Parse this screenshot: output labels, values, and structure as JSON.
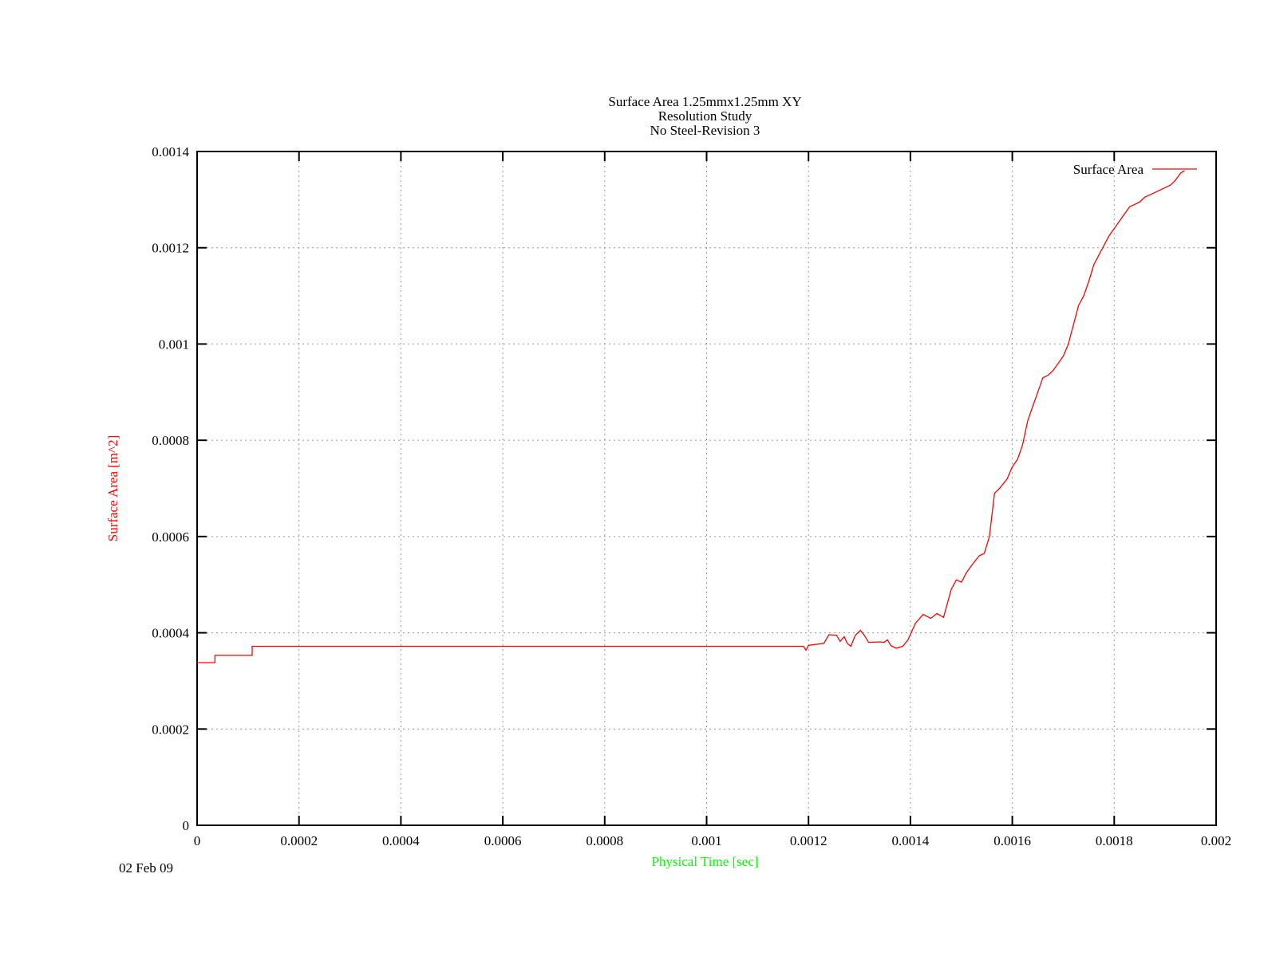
{
  "chart_data": {
    "type": "line",
    "title": [
      "Surface Area 1.25mmx1.25mm XY",
      "Resolution Study",
      "No Steel-Revision 3"
    ],
    "xlabel": "Physical Time [sec]",
    "ylabel": "Surface Area [m^2]",
    "xlim": [
      0,
      0.002
    ],
    "ylim": [
      0,
      0.0014
    ],
    "x_ticks": [
      "0",
      "0.0002",
      "0.0004",
      "0.0006",
      "0.0008",
      "0.001",
      "0.0012",
      "0.0014",
      "0.0016",
      "0.0018",
      "0.002"
    ],
    "y_ticks": [
      "0",
      "0.0002",
      "0.0004",
      "0.0006",
      "0.0008",
      "0.001",
      "0.0012",
      "0.0014"
    ],
    "grid": true,
    "legend_position": "top-right",
    "series": [
      {
        "name": "Surface Area",
        "color": "#ff0000",
        "step": true,
        "points": [
          [
            0,
            0.000338
          ],
          [
            3.5e-05,
            0.000338
          ],
          [
            3.5e-05,
            0.000353
          ],
          [
            0.000108,
            0.000353
          ],
          [
            0.000108,
            0.000372
          ],
          [
            0.00119,
            0.000372
          ],
          [
            0.001195,
            0.000364
          ],
          [
            0.0012,
            0.000374
          ],
          [
            0.00123,
            0.000378
          ],
          [
            0.00124,
            0.000396
          ],
          [
            0.001255,
            0.000395
          ],
          [
            0.001262,
            0.000382
          ],
          [
            0.00127,
            0.000392
          ],
          [
            0.001276,
            0.000378
          ],
          [
            0.001283,
            0.000372
          ],
          [
            0.001292,
            0.000395
          ],
          [
            0.001302,
            0.000405
          ],
          [
            0.00131,
            0.000394
          ],
          [
            0.001318,
            0.00038
          ],
          [
            0.00134,
            0.000381
          ],
          [
            0.001348,
            0.00038
          ],
          [
            0.001355,
            0.000385
          ],
          [
            0.001362,
            0.000373
          ],
          [
            0.001372,
            0.000368
          ],
          [
            0.001385,
            0.000372
          ],
          [
            0.001395,
            0.000385
          ],
          [
            0.00141,
            0.00042
          ],
          [
            0.001425,
            0.000438
          ],
          [
            0.00144,
            0.00043
          ],
          [
            0.001452,
            0.00044
          ],
          [
            0.001465,
            0.000432
          ],
          [
            0.00148,
            0.00049
          ],
          [
            0.00149,
            0.00051
          ],
          [
            0.0015,
            0.000505
          ],
          [
            0.00151,
            0.000525
          ],
          [
            0.00152,
            0.00054
          ],
          [
            0.001535,
            0.00056
          ],
          [
            0.001545,
            0.000565
          ],
          [
            0.001555,
            0.0006
          ],
          [
            0.001565,
            0.00069
          ],
          [
            0.001575,
            0.0007
          ],
          [
            0.00159,
            0.00072
          ],
          [
            0.0016,
            0.000745
          ],
          [
            0.00161,
            0.00076
          ],
          [
            0.00162,
            0.00079
          ],
          [
            0.00163,
            0.00084
          ],
          [
            0.00164,
            0.00087
          ],
          [
            0.00165,
            0.0009
          ],
          [
            0.00166,
            0.00093
          ],
          [
            0.00167,
            0.000935
          ],
          [
            0.00168,
            0.000945
          ],
          [
            0.00169,
            0.00096
          ],
          [
            0.0017,
            0.000975
          ],
          [
            0.00171,
            0.001
          ],
          [
            0.00172,
            0.00104
          ],
          [
            0.00173,
            0.00108
          ],
          [
            0.00174,
            0.0011
          ],
          [
            0.00175,
            0.00113
          ],
          [
            0.00176,
            0.001165
          ],
          [
            0.00177,
            0.001185
          ],
          [
            0.00178,
            0.001205
          ],
          [
            0.00179,
            0.001225
          ],
          [
            0.0018,
            0.00124
          ],
          [
            0.00181,
            0.001255
          ],
          [
            0.00182,
            0.00127
          ],
          [
            0.00183,
            0.001285
          ],
          [
            0.00184,
            0.00129
          ],
          [
            0.00185,
            0.001295
          ],
          [
            0.00186,
            0.001305
          ],
          [
            0.00187,
            0.00131
          ],
          [
            0.00188,
            0.001315
          ],
          [
            0.00189,
            0.00132
          ],
          [
            0.0019,
            0.001325
          ],
          [
            0.00191,
            0.00133
          ],
          [
            0.00192,
            0.00134
          ],
          [
            0.00193,
            0.001355
          ],
          [
            0.001938,
            0.00136
          ]
        ]
      }
    ]
  },
  "footer": {
    "date": "02 Feb 09"
  }
}
